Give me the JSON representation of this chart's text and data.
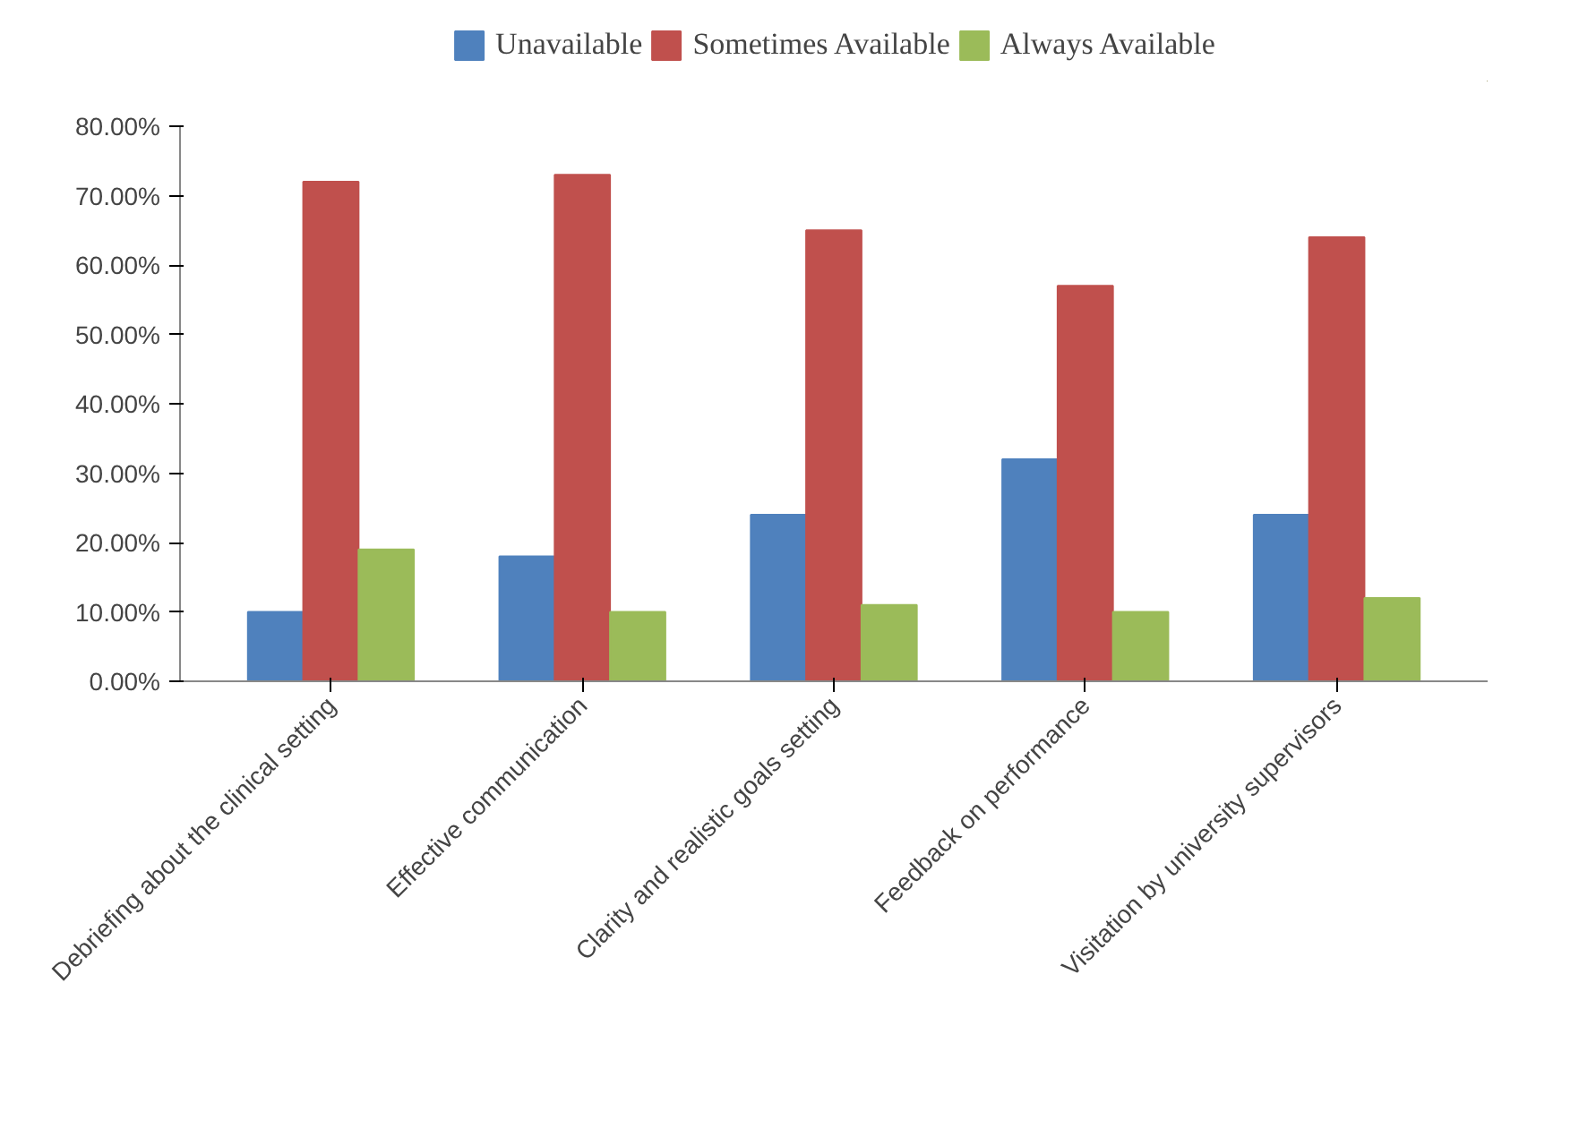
{
  "chart_data": {
    "type": "bar",
    "categories": [
      "Debriefing about the clinical setting",
      "Effective communication",
      "Clarity and realistic goals setting",
      "Feedback on performance",
      "Visitation by university supervisors"
    ],
    "series": [
      {
        "name": "Unavailable",
        "color": "#4f81bd",
        "values": [
          10,
          18,
          24,
          32,
          24
        ]
      },
      {
        "name": "Sometimes Available",
        "color": "#c0504d",
        "values": [
          72,
          73,
          65,
          57,
          64
        ]
      },
      {
        "name": "Always Available",
        "color": "#9bbb59",
        "values": [
          19,
          10,
          11,
          10,
          12
        ]
      }
    ],
    "ylim": [
      0,
      80
    ],
    "yticks": [
      {
        "value": 0,
        "label": "0.00%"
      },
      {
        "value": 10,
        "label": "10.00%"
      },
      {
        "value": 20,
        "label": "20.00%"
      },
      {
        "value": 30,
        "label": "30.00%"
      },
      {
        "value": 40,
        "label": "40.00%"
      },
      {
        "value": 50,
        "label": "50.00%"
      },
      {
        "value": 60,
        "label": "60.00%"
      },
      {
        "value": 70,
        "label": "70.00%"
      },
      {
        "value": 80,
        "label": "80.00%"
      }
    ],
    "legend": "top",
    "grid": false
  }
}
